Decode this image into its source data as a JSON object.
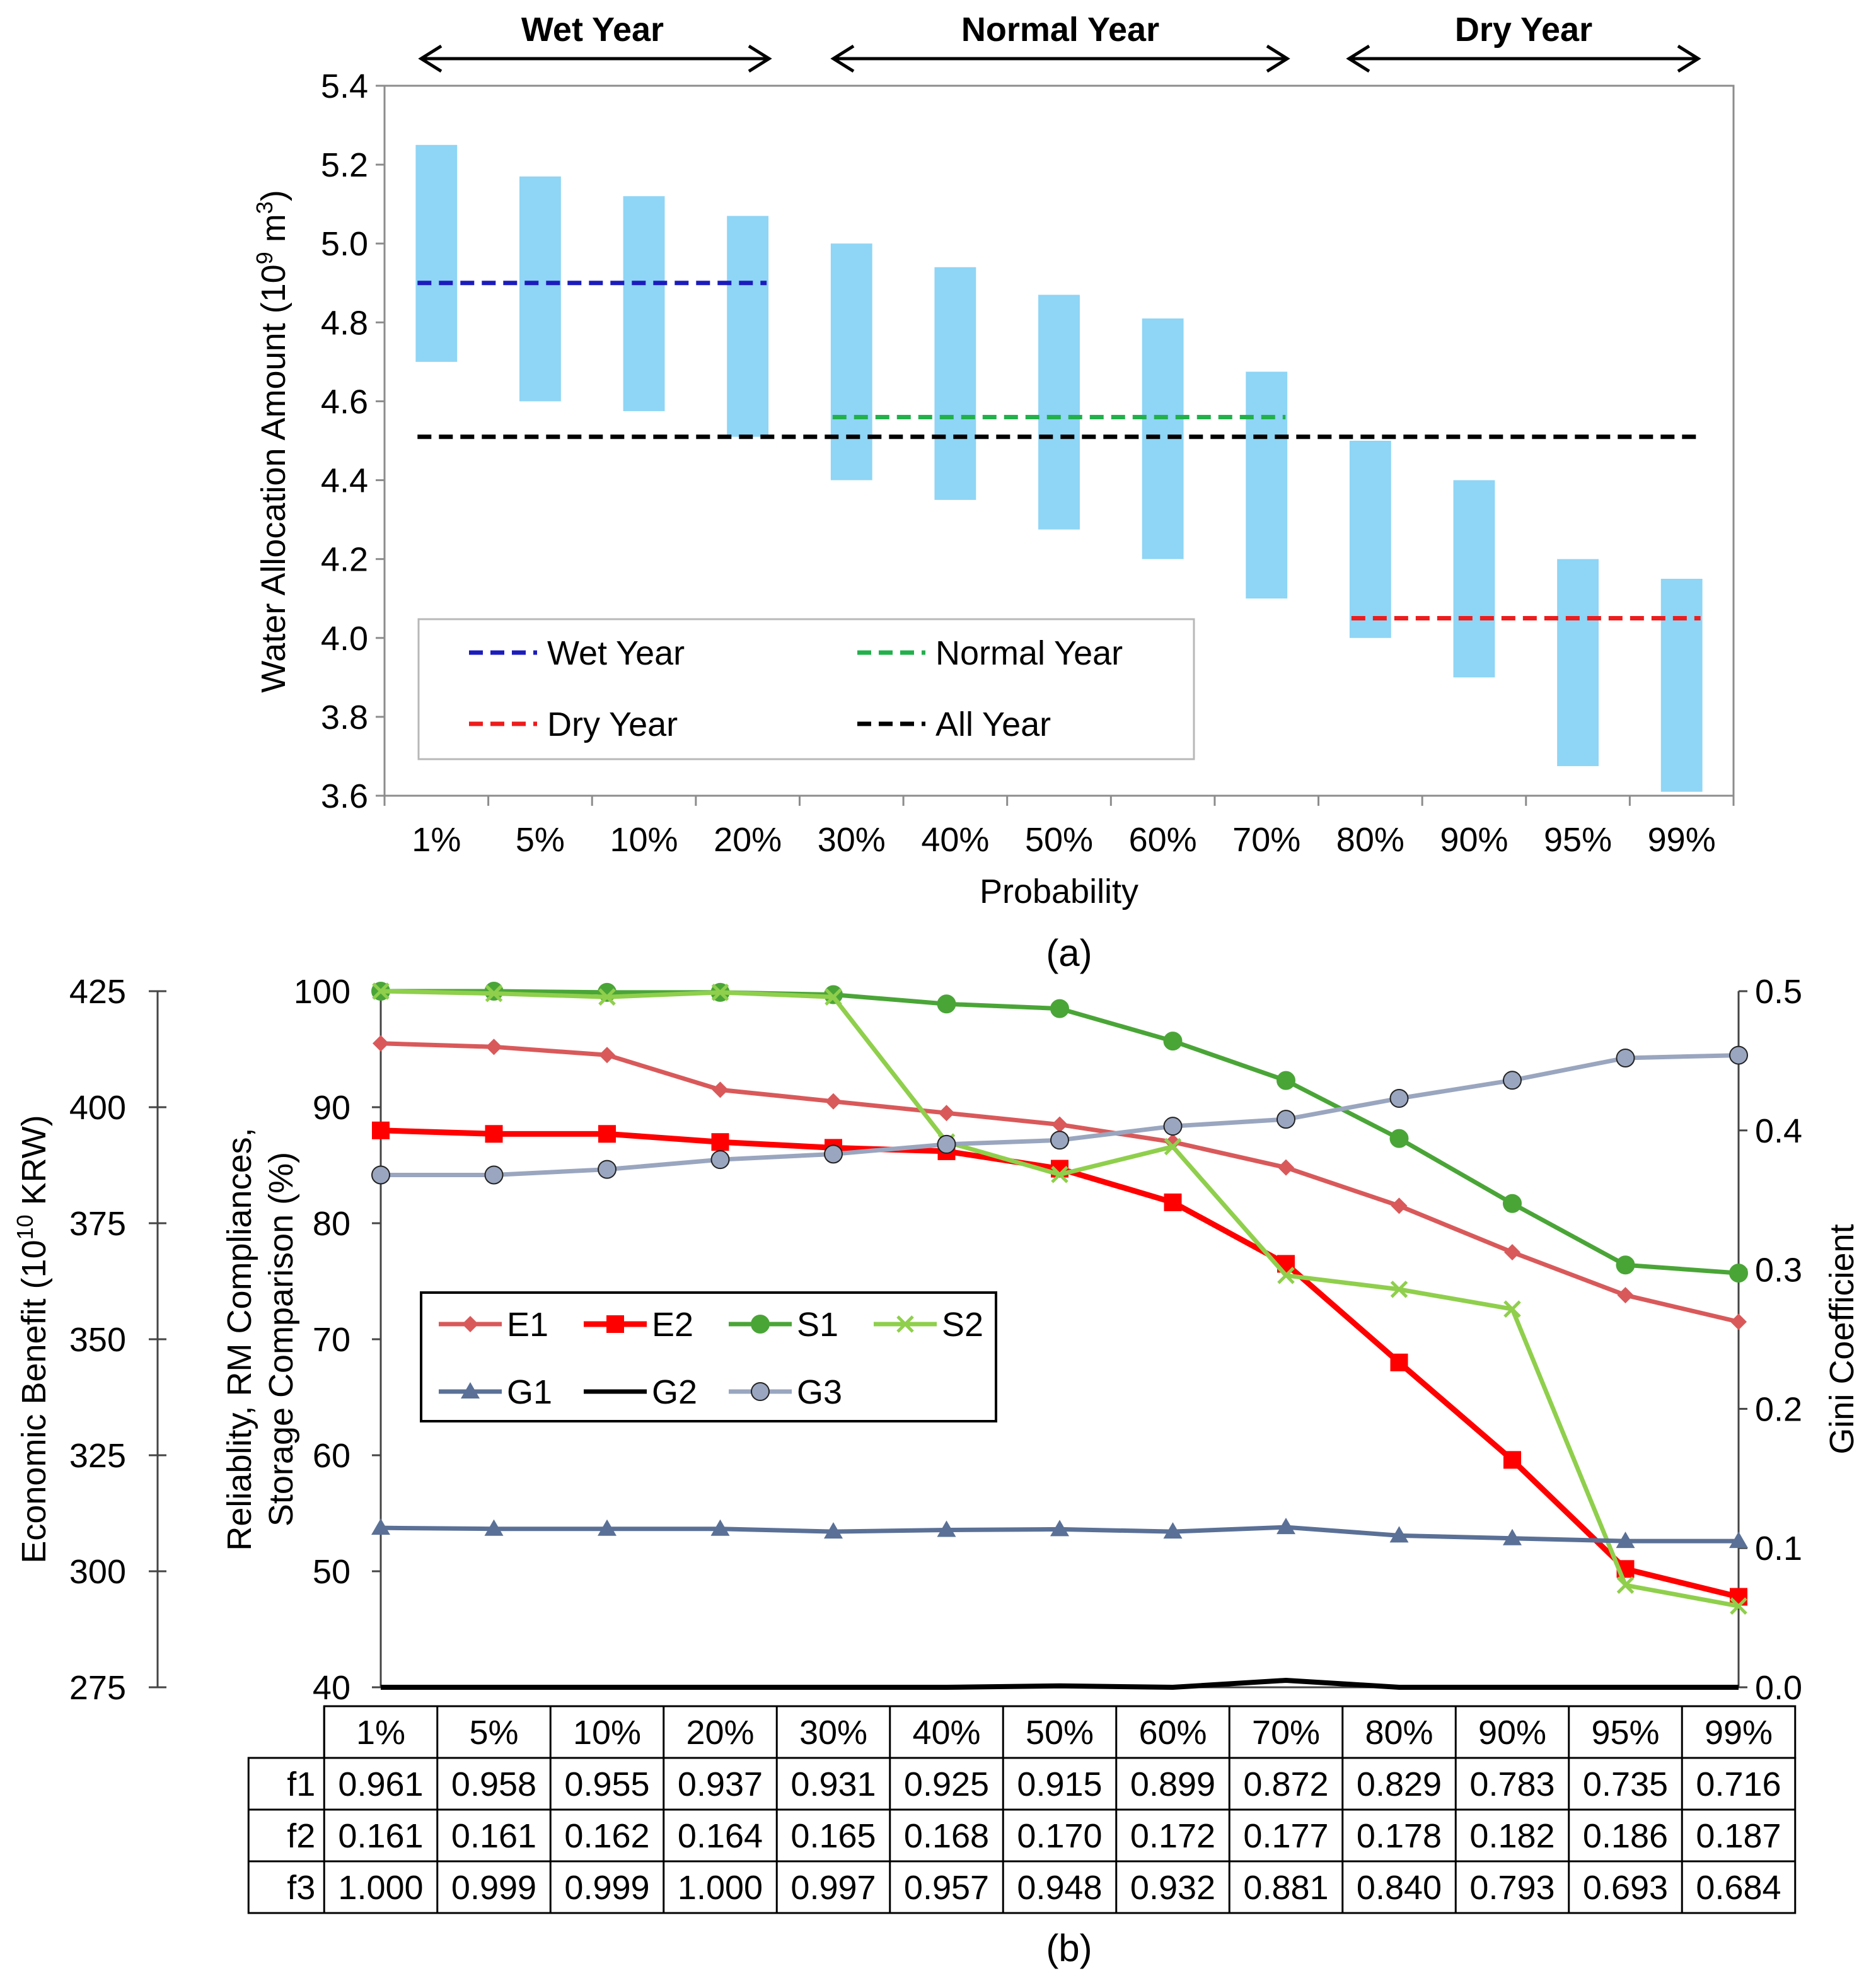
{
  "chart_data": [
    {
      "panel": "(a)",
      "type": "bar",
      "subtype": "floating-range",
      "xlabel": "Probability",
      "ylabel": "Water Allocation Amount (10",
      "ylabel_sup1": "9",
      "ylabel_mid": " m",
      "ylabel_sup2": "3",
      "ylabel_end": ")",
      "ylim": [
        3.6,
        5.4
      ],
      "yticks": [
        "3.6",
        "3.8",
        "4.0",
        "4.2",
        "4.4",
        "4.6",
        "4.8",
        "5.0",
        "5.2",
        "5.4"
      ],
      "categories": [
        "1%",
        "5%",
        "10%",
        "20%",
        "30%",
        "40%",
        "50%",
        "60%",
        "70%",
        "80%",
        "90%",
        "95%",
        "99%"
      ],
      "ranges": [
        [
          4.7,
          5.25
        ],
        [
          4.6,
          5.17
        ],
        [
          4.575,
          5.12
        ],
        [
          4.51,
          5.07
        ],
        [
          4.4,
          5.0
        ],
        [
          4.35,
          4.94
        ],
        [
          4.275,
          4.87
        ],
        [
          4.2,
          4.81
        ],
        [
          4.1,
          4.675
        ],
        [
          4.0,
          4.5
        ],
        [
          3.9,
          4.4
        ],
        [
          3.675,
          4.2
        ],
        [
          3.61,
          4.15
        ]
      ],
      "bar_color": "#8fd5f5",
      "era_labels": [
        "Wet Year",
        "Normal Year",
        "Dry Year"
      ],
      "reference_lines": [
        {
          "name": "Wet Year",
          "value": 4.9,
          "from": "1%",
          "to": "20%",
          "color": "#1c1cbd"
        },
        {
          "name": "Normal Year",
          "value": 4.56,
          "from": "30%",
          "to": "70%",
          "color": "#22b04b"
        },
        {
          "name": "Dry Year",
          "value": 4.05,
          "from": "80%",
          "to": "99%",
          "color": "#ee1c1c"
        },
        {
          "name": "All Year",
          "value": 4.51,
          "from": "1%",
          "to": "99%",
          "color": "#000000"
        }
      ],
      "legend": [
        "Wet Year",
        "Normal Year",
        "Dry Year",
        "All Year"
      ]
    },
    {
      "panel": "(b)",
      "type": "line",
      "categories": [
        "1%",
        "5%",
        "10%",
        "20%",
        "30%",
        "40%",
        "50%",
        "60%",
        "70%",
        "80%",
        "90%",
        "95%",
        "99%"
      ],
      "axes": {
        "economic": {
          "label": "Economic Benefit (10",
          "label_sup": "10",
          "label_end": " KRW)",
          "ylim": [
            275,
            425
          ],
          "ticks": [
            "275",
            "300",
            "325",
            "350",
            "375",
            "400",
            "425"
          ]
        },
        "percent": {
          "label_line1": "Reliablity, RM Compliances,",
          "label_line2": "Storage Comparison (%)",
          "ylim": [
            40,
            100
          ],
          "ticks": [
            "40",
            "50",
            "60",
            "70",
            "80",
            "90",
            "100"
          ]
        },
        "gini": {
          "label": "Gini Coefficient",
          "ylim": [
            0.0,
            0.5
          ],
          "ticks": [
            "0.0",
            "0.1",
            "0.2",
            "0.3",
            "0.4",
            "0.5"
          ]
        }
      },
      "series": [
        {
          "name": "E1",
          "axis": "percent",
          "color": "#d9595a",
          "marker": "diamond",
          "values": [
            95.5,
            95.2,
            94.5,
            91.5,
            90.5,
            89.5,
            88.5,
            87.0,
            84.8,
            81.5,
            77.5,
            73.8,
            71.5
          ]
        },
        {
          "name": "E2",
          "axis": "percent",
          "color": "#ff0000",
          "marker": "square",
          "values": [
            88.0,
            87.7,
            87.7,
            87.0,
            86.5,
            86.2,
            84.7,
            81.8,
            76.5,
            68.0,
            59.6,
            50.2,
            47.8
          ]
        },
        {
          "name": "S1",
          "axis": "percent",
          "color": "#4aa537",
          "marker": "circle",
          "values": [
            100.0,
            100.0,
            99.9,
            99.9,
            99.7,
            98.9,
            98.5,
            95.7,
            92.3,
            87.3,
            81.7,
            76.4,
            75.7
          ]
        },
        {
          "name": "S2",
          "axis": "percent",
          "color": "#8fcf4c",
          "marker": "x",
          "values": [
            100.0,
            99.8,
            99.5,
            99.9,
            99.5,
            87.0,
            84.2,
            86.6,
            75.5,
            74.3,
            72.6,
            48.8,
            47.0
          ]
        },
        {
          "name": "G1",
          "axis": "gini",
          "color": "#5a7096",
          "marker": "triangle",
          "values": [
            0.1145,
            0.1138,
            0.1138,
            0.1138,
            0.1118,
            0.113,
            0.1135,
            0.1118,
            0.115,
            0.109,
            0.107,
            0.105,
            0.105
          ]
        },
        {
          "name": "G2",
          "axis": "gini",
          "color": "#000000",
          "marker": "none",
          "values": [
            0.0,
            0.0,
            0.0,
            0.0,
            0.0,
            0.0,
            0.001,
            0.0,
            0.005,
            0.0,
            0.0,
            0.0,
            0.0
          ]
        },
        {
          "name": "G3",
          "axis": "gini",
          "color": "#9aa6bf",
          "marker": "circle",
          "values": [
            0.368,
            0.368,
            0.372,
            0.379,
            0.383,
            0.39,
            0.393,
            0.403,
            0.408,
            0.423,
            0.436,
            0.452,
            0.454
          ]
        }
      ],
      "legend_row1": [
        "E1",
        "E2",
        "S1",
        "S2"
      ],
      "legend_row2": [
        "G1",
        "G2",
        "G3"
      ],
      "table": {
        "header": [
          "1%",
          "5%",
          "10%",
          "20%",
          "30%",
          "40%",
          "50%",
          "60%",
          "70%",
          "80%",
          "90%",
          "95%",
          "99%"
        ],
        "rows": [
          {
            "label": "f1",
            "values": [
              "0.961",
              "0.958",
              "0.955",
              "0.937",
              "0.931",
              "0.925",
              "0.915",
              "0.899",
              "0.872",
              "0.829",
              "0.783",
              "0.735",
              "0.716"
            ]
          },
          {
            "label": "f2",
            "values": [
              "0.161",
              "0.161",
              "0.162",
              "0.164",
              "0.165",
              "0.168",
              "0.170",
              "0.172",
              "0.177",
              "0.178",
              "0.182",
              "0.186",
              "0.187"
            ]
          },
          {
            "label": "f3",
            "values": [
              "1.000",
              "0.999",
              "0.999",
              "1.000",
              "0.997",
              "0.957",
              "0.948",
              "0.932",
              "0.881",
              "0.840",
              "0.793",
              "0.693",
              "0.684"
            ]
          }
        ]
      }
    }
  ]
}
